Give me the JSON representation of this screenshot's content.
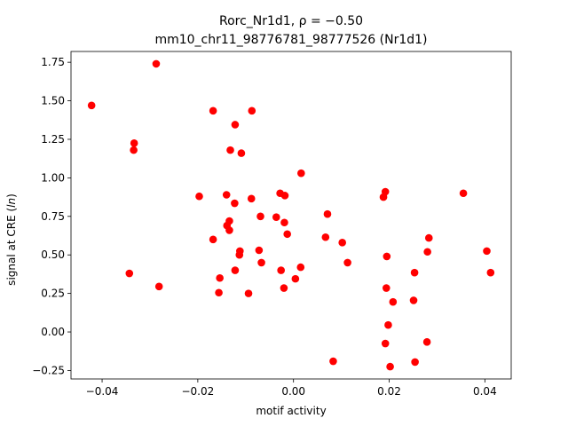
{
  "chart_data": {
    "type": "scatter",
    "title_line1": "Rorc_Nr1d1, ρ = −0.50",
    "title_line2": "mm10_chr11_98776781_98777526 (Nr1d1)",
    "xlabel": "motif activity",
    "ylabel": "signal at CRE (ln)",
    "xlim": [
      -0.0465,
      0.0455
    ],
    "ylim": [
      -0.305,
      1.82
    ],
    "xticks": [
      -0.04,
      -0.02,
      0.0,
      0.02,
      0.04
    ],
    "xtick_labels": [
      "−0.04",
      "−0.02",
      "0.00",
      "0.02",
      "0.04"
    ],
    "yticks": [
      -0.25,
      0.0,
      0.25,
      0.5,
      0.75,
      1.0,
      1.25,
      1.5,
      1.75
    ],
    "ytick_labels": [
      "−0.25",
      "0.00",
      "0.25",
      "0.50",
      "0.75",
      "1.00",
      "1.25",
      "1.50",
      "1.75"
    ],
    "grid": false,
    "marker_color": "#ff0000",
    "points": [
      {
        "x": -0.0422,
        "y": 1.47
      },
      {
        "x": -0.0287,
        "y": 1.74
      },
      {
        "x": -0.0333,
        "y": 1.225
      },
      {
        "x": -0.0334,
        "y": 1.18
      },
      {
        "x": -0.0343,
        "y": 0.38
      },
      {
        "x": -0.0281,
        "y": 0.295
      },
      {
        "x": -0.0197,
        "y": 0.88
      },
      {
        "x": -0.0168,
        "y": 1.435
      },
      {
        "x": -0.0087,
        "y": 1.435
      },
      {
        "x": -0.0122,
        "y": 1.345
      },
      {
        "x": -0.0132,
        "y": 1.18
      },
      {
        "x": -0.0109,
        "y": 1.16
      },
      {
        "x": -0.014,
        "y": 0.89
      },
      {
        "x": -0.0088,
        "y": 0.865
      },
      {
        "x": -0.0123,
        "y": 0.835
      },
      {
        "x": -0.0134,
        "y": 0.72
      },
      {
        "x": -0.0139,
        "y": 0.69
      },
      {
        "x": -0.0134,
        "y": 0.66
      },
      {
        "x": -0.0168,
        "y": 0.6
      },
      {
        "x": -0.0112,
        "y": 0.525
      },
      {
        "x": -0.0113,
        "y": 0.5
      },
      {
        "x": -0.0122,
        "y": 0.4
      },
      {
        "x": -0.0154,
        "y": 0.35
      },
      {
        "x": -0.0156,
        "y": 0.255
      },
      {
        "x": -0.0094,
        "y": 0.25
      },
      {
        "x": -0.0069,
        "y": 0.75
      },
      {
        "x": -0.0072,
        "y": 0.53
      },
      {
        "x": -0.0067,
        "y": 0.45
      },
      {
        "x": -0.0028,
        "y": 0.9
      },
      {
        "x": -0.0018,
        "y": 0.885
      },
      {
        "x": -0.0036,
        "y": 0.745
      },
      {
        "x": -0.0019,
        "y": 0.71
      },
      {
        "x": -0.0013,
        "y": 0.635
      },
      {
        "x": -0.0026,
        "y": 0.4
      },
      {
        "x": -0.002,
        "y": 0.285
      },
      {
        "x": 0.0004,
        "y": 0.345
      },
      {
        "x": 0.0015,
        "y": 0.42
      },
      {
        "x": 0.0016,
        "y": 1.03
      },
      {
        "x": 0.0071,
        "y": 0.765
      },
      {
        "x": 0.0067,
        "y": 0.615
      },
      {
        "x": 0.0102,
        "y": 0.58
      },
      {
        "x": 0.0113,
        "y": 0.45
      },
      {
        "x": 0.0083,
        "y": -0.19
      },
      {
        "x": 0.0188,
        "y": 0.875
      },
      {
        "x": 0.0192,
        "y": 0.91
      },
      {
        "x": 0.0195,
        "y": 0.49
      },
      {
        "x": 0.0194,
        "y": 0.285
      },
      {
        "x": 0.0208,
        "y": 0.195
      },
      {
        "x": 0.0198,
        "y": 0.045
      },
      {
        "x": 0.0192,
        "y": -0.075
      },
      {
        "x": 0.0202,
        "y": -0.225
      },
      {
        "x": 0.0253,
        "y": 0.385
      },
      {
        "x": 0.0251,
        "y": 0.205
      },
      {
        "x": 0.0254,
        "y": -0.195
      },
      {
        "x": 0.0283,
        "y": 0.61
      },
      {
        "x": 0.028,
        "y": 0.52
      },
      {
        "x": 0.0279,
        "y": -0.065
      },
      {
        "x": 0.0355,
        "y": 0.9
      },
      {
        "x": 0.0404,
        "y": 0.525
      },
      {
        "x": 0.0412,
        "y": 0.385
      }
    ]
  }
}
